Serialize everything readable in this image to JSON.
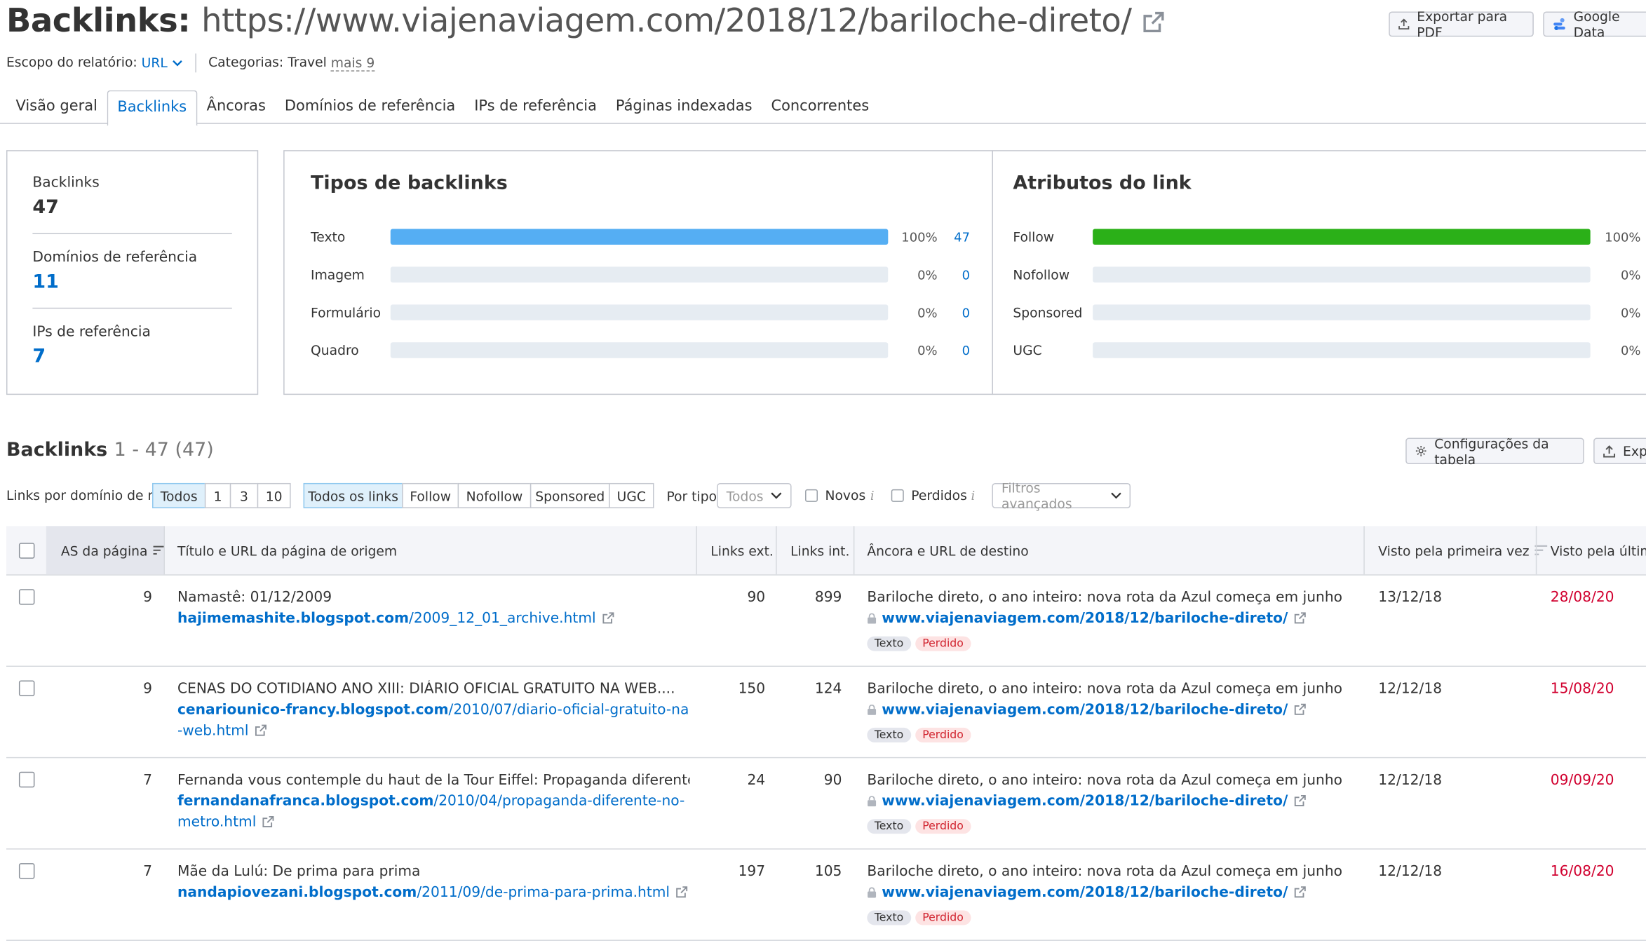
{
  "header": {
    "title_prefix": "Backlinks:",
    "title_url": "https://www.viajenaviagem.com/2018/12/bariloche-direto/",
    "export_pdf": "Exportar para PDF",
    "google_data": "Google Data"
  },
  "meta": {
    "scope_label": "Escopo do relatório:",
    "scope_value": "URL",
    "categories_label": "Categorias:",
    "categories_value": "Travel",
    "more": "mais 9"
  },
  "tabs": [
    {
      "label": "Visão geral"
    },
    {
      "label": "Backlinks"
    },
    {
      "label": "Âncoras"
    },
    {
      "label": "Domínios de referência"
    },
    {
      "label": "IPs de referência"
    },
    {
      "label": "Páginas indexadas"
    },
    {
      "label": "Concorrentes"
    }
  ],
  "summary": {
    "backlinks_label": "Backlinks",
    "backlinks_value": "47",
    "domains_label": "Domínios de referência",
    "domains_value": "11",
    "ips_label": "IPs de referência",
    "ips_value": "7"
  },
  "types": {
    "title": "Tipos de backlinks",
    "rows": [
      {
        "label": "Texto",
        "pct": "100%",
        "count": "47",
        "fraction": 1.0
      },
      {
        "label": "Imagem",
        "pct": "0%",
        "count": "0",
        "fraction": 0
      },
      {
        "label": "Formulário",
        "pct": "0%",
        "count": "0",
        "fraction": 0
      },
      {
        "label": "Quadro",
        "pct": "0%",
        "count": "0",
        "fraction": 0
      }
    ],
    "color": "#55aef3"
  },
  "attributes": {
    "title": "Atributos do link",
    "rows": [
      {
        "label": "Follow",
        "pct": "100%",
        "fraction": 1.0
      },
      {
        "label": "Nofollow",
        "pct": "0%",
        "fraction": 0
      },
      {
        "label": "Sponsored",
        "pct": "0%",
        "fraction": 0
      },
      {
        "label": "UGC",
        "pct": "0%",
        "fraction": 0
      }
    ],
    "color": "#2bb018"
  },
  "table_section": {
    "title": "Backlinks",
    "range": "1 - 47 (47)",
    "config_button": "Configurações da tabela",
    "export_button": "Exp"
  },
  "filters": {
    "per_domain_label": "Links por domínio de ref.",
    "per_domain_options": [
      "Todos",
      "1",
      "3",
      "10"
    ],
    "link_type_options": [
      "Todos os links",
      "Follow",
      "Nofollow",
      "Sponsored",
      "UGC"
    ],
    "by_type_label": "Por tipo",
    "by_type_value": "Todos",
    "new_label": "Novos",
    "lost_label": "Perdidos",
    "info_glyph": "i",
    "advanced": "Filtros avançados"
  },
  "columns": {
    "page_as": "AS da página",
    "source": "Título e URL da página de origem",
    "ext_links": "Links ext.",
    "int_links": "Links int.",
    "anchor": "Âncora e URL de destino",
    "first_seen": "Visto pela primeira vez",
    "last_seen": "Visto pela última"
  },
  "rows": [
    {
      "as": "9",
      "title": "Namastê: 01/12/2009",
      "url_domain": "hajimemashite.blogspot.com",
      "url_path": "/2009_12_01_archive.html",
      "ext": "90",
      "int": "899",
      "anchor": "Bariloche direto, o ano inteiro: nova rota da Azul começa em junho",
      "target": "www.viajenaviagem.com/2018/12/bariloche-direto/",
      "tag1": "Texto",
      "tag2": "Perdido",
      "first": "13/12/18",
      "last": "28/08/20"
    },
    {
      "as": "9",
      "title": "CENAS DO COTIDIANO ANO XIII: DIÁRIO OFICIAL GRATUITO NA WEB....",
      "url_domain": "cenariounico-francy.blogspot.com",
      "url_path": "/2010/07/diario-oficial-gratuito-na-web.html",
      "ext": "150",
      "int": "124",
      "anchor": "Bariloche direto, o ano inteiro: nova rota da Azul começa em junho",
      "target": "www.viajenaviagem.com/2018/12/bariloche-direto/",
      "tag1": "Texto",
      "tag2": "Perdido",
      "first": "12/12/18",
      "last": "15/08/20"
    },
    {
      "as": "7",
      "title": "Fernanda vous contemple du haut de la Tour Eiffel: Propaganda diferente …",
      "url_domain": "fernandanafranca.blogspot.com",
      "url_path": "/2010/04/propaganda-diferente-no-metro.html",
      "ext": "24",
      "int": "90",
      "anchor": "Bariloche direto, o ano inteiro: nova rota da Azul começa em junho",
      "target": "www.viajenaviagem.com/2018/12/bariloche-direto/",
      "tag1": "Texto",
      "tag2": "Perdido",
      "first": "12/12/18",
      "last": "09/09/20"
    },
    {
      "as": "7",
      "title": "Mãe da Lulú: De prima para prima",
      "url_domain": "nandapiovezani.blogspot.com",
      "url_path": "/2011/09/de-prima-para-prima.html",
      "ext": "197",
      "int": "105",
      "anchor": "Bariloche direto, o ano inteiro: nova rota da Azul começa em junho",
      "target": "www.viajenaviagem.com/2018/12/bariloche-direto/",
      "tag1": "Texto",
      "tag2": "Perdido",
      "first": "12/12/18",
      "last": "16/08/20"
    }
  ]
}
